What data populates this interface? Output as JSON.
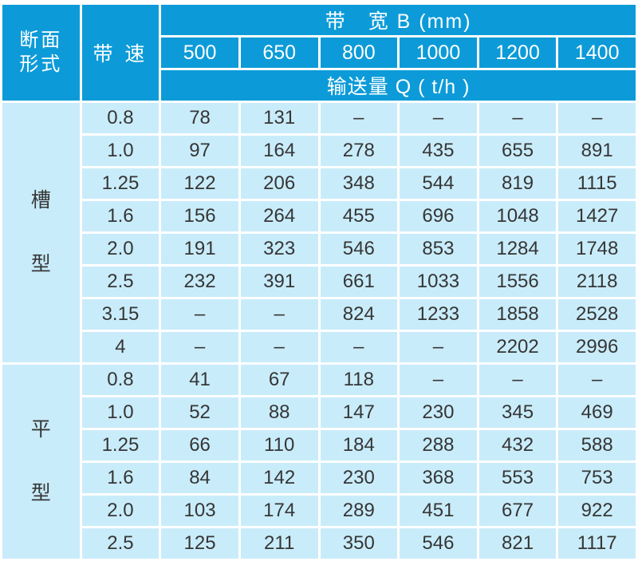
{
  "colors": {
    "header_bg": "#0c9bd8",
    "body_bg": "#c9ecfa",
    "grid": "#ffffff",
    "header_text": "#ffffff",
    "body_text": "#363636"
  },
  "table": {
    "corner_header": "断面\n形式",
    "speed_header": "带 速",
    "bandwidth_header": "带　宽  B (mm)",
    "capacity_header": "输送量 Q ( t/h )",
    "widths": [
      "500",
      "650",
      "800",
      "1000",
      "1200",
      "1400"
    ],
    "sections": [
      {
        "id": "trough",
        "label_chars": [
          "槽",
          "型"
        ],
        "rows": [
          {
            "speed": "0.8",
            "values": [
              "78",
              "131",
              "–",
              "–",
              "–",
              "–"
            ]
          },
          {
            "speed": "1.0",
            "values": [
              "97",
              "164",
              "278",
              "435",
              "655",
              "891"
            ]
          },
          {
            "speed": "1.25",
            "values": [
              "122",
              "206",
              "348",
              "544",
              "819",
              "1115"
            ]
          },
          {
            "speed": "1.6",
            "values": [
              "156",
              "264",
              "455",
              "696",
              "1048",
              "1427"
            ]
          },
          {
            "speed": "2.0",
            "values": [
              "191",
              "323",
              "546",
              "853",
              "1284",
              "1748"
            ]
          },
          {
            "speed": "2.5",
            "values": [
              "232",
              "391",
              "661",
              "1033",
              "1556",
              "2118"
            ]
          },
          {
            "speed": "3.15",
            "values": [
              "–",
              "–",
              "824",
              "1233",
              "1858",
              "2528"
            ]
          },
          {
            "speed": "4",
            "values": [
              "–",
              "–",
              "–",
              "–",
              "2202",
              "2996"
            ]
          }
        ]
      },
      {
        "id": "flat",
        "label_chars": [
          "平",
          "型"
        ],
        "rows": [
          {
            "speed": "0.8",
            "values": [
              "41",
              "67",
              "118",
              "–",
              "–",
              "–"
            ]
          },
          {
            "speed": "1.0",
            "values": [
              "52",
              "88",
              "147",
              "230",
              "345",
              "469"
            ]
          },
          {
            "speed": "1.25",
            "values": [
              "66",
              "110",
              "184",
              "288",
              "432",
              "588"
            ]
          },
          {
            "speed": "1.6",
            "values": [
              "84",
              "142",
              "230",
              "368",
              "553",
              "753"
            ]
          },
          {
            "speed": "2.0",
            "values": [
              "103",
              "174",
              "289",
              "451",
              "677",
              "922"
            ]
          },
          {
            "speed": "2.5",
            "values": [
              "125",
              "211",
              "350",
              "546",
              "821",
              "1117"
            ]
          }
        ]
      }
    ]
  }
}
